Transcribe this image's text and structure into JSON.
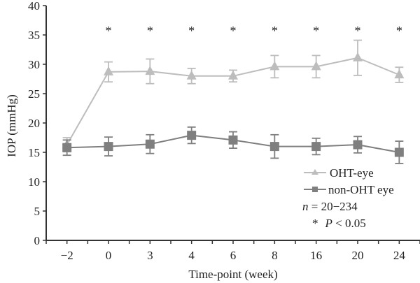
{
  "chart_data": {
    "type": "line",
    "title": "",
    "xlabel": "Time-point (week)",
    "ylabel": "IOP (mmHg)",
    "ylim": [
      0,
      40
    ],
    "yticks": [
      0,
      5,
      10,
      15,
      20,
      25,
      30,
      35,
      40
    ],
    "categories": [
      "−2",
      "0",
      "3",
      "4",
      "6",
      "8",
      "16",
      "20",
      "24"
    ],
    "grid": false,
    "legend_position": "bottom-right",
    "series": [
      {
        "name": "OHT-eye",
        "marker": "triangle",
        "color": "#bdbdbd",
        "values": [
          16.3,
          28.7,
          28.8,
          28.0,
          28.0,
          29.6,
          29.6,
          31.1,
          28.2
        ],
        "errors": [
          1.2,
          1.7,
          2.1,
          1.3,
          1.0,
          1.9,
          1.9,
          3.0,
          1.3
        ]
      },
      {
        "name": "non-OHT eye",
        "marker": "square",
        "color": "#7f7f7f",
        "values": [
          15.8,
          16.0,
          16.4,
          17.9,
          17.1,
          16.0,
          16.0,
          16.3,
          15.0
        ],
        "errors": [
          1.3,
          1.6,
          1.6,
          1.4,
          1.4,
          2.0,
          1.4,
          1.4,
          1.9
        ]
      }
    ],
    "significance_markers": [
      "",
      "*",
      "*",
      "*",
      "*",
      "*",
      "*",
      "*",
      "*"
    ],
    "annotations": {
      "n_label": "n",
      "n_text": " = 20−234",
      "p_star": "*",
      "p_label": "P",
      "p_text": " < 0.05"
    }
  }
}
